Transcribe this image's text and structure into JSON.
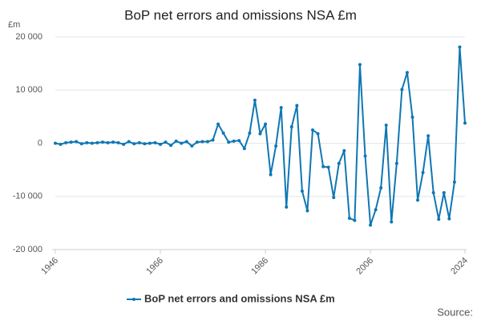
{
  "chart_data": {
    "type": "line",
    "title": "BoP net errors and omissions NSA £m",
    "y_unit": "£m",
    "source": "Source:",
    "x": [
      1946,
      1947,
      1948,
      1949,
      1950,
      1951,
      1952,
      1953,
      1954,
      1955,
      1956,
      1957,
      1958,
      1959,
      1960,
      1961,
      1962,
      1963,
      1964,
      1965,
      1966,
      1967,
      1968,
      1969,
      1970,
      1971,
      1972,
      1973,
      1974,
      1975,
      1976,
      1977,
      1978,
      1979,
      1980,
      1981,
      1982,
      1983,
      1984,
      1985,
      1986,
      1987,
      1988,
      1989,
      1990,
      1991,
      1992,
      1993,
      1994,
      1995,
      1996,
      1997,
      1998,
      1999,
      2000,
      2001,
      2002,
      2003,
      2004,
      2005,
      2006,
      2007,
      2008,
      2009,
      2010,
      2011,
      2012,
      2013,
      2014,
      2015,
      2016,
      2017,
      2018,
      2019,
      2020,
      2021,
      2022,
      2023,
      2024
    ],
    "series": [
      {
        "name": "BoP net errors and omissions NSA £m",
        "color": "#0f77b3",
        "values": [
          0,
          -200,
          100,
          200,
          300,
          -100,
          100,
          0,
          100,
          200,
          100,
          200,
          100,
          -200,
          300,
          -100,
          100,
          -100,
          0,
          100,
          -200,
          200,
          -400,
          400,
          0,
          300,
          -500,
          200,
          300,
          300,
          600,
          3600,
          1900,
          200,
          400,
          500,
          -1000,
          1900,
          8100,
          1800,
          3600,
          -5900,
          -500,
          6700,
          -12000,
          3100,
          7100,
          -9000,
          -12700,
          2500,
          1800,
          -4400,
          -4500,
          -10200,
          -3800,
          -1400,
          -14100,
          -14500,
          14800,
          -2400,
          -15400,
          -12500,
          -8400,
          3400,
          -14800,
          -3800,
          10100,
          13300,
          4900,
          -10700,
          -5500,
          1400,
          -9300,
          -14300,
          -9300,
          -14200,
          -7300,
          18100,
          3800
        ]
      }
    ],
    "xlim": [
      1946,
      2024
    ],
    "xticks": [
      1946,
      1966,
      1986,
      2006,
      2024
    ],
    "ylim": [
      -20000,
      20000
    ],
    "yticks": [
      {
        "value": -20000,
        "label": "-20 000"
      },
      {
        "value": -10000,
        "label": "-10 000"
      },
      0,
      {
        "value": 10000,
        "label": "10 000"
      },
      {
        "value": 20000,
        "label": "20 000"
      }
    ],
    "grid": true
  }
}
